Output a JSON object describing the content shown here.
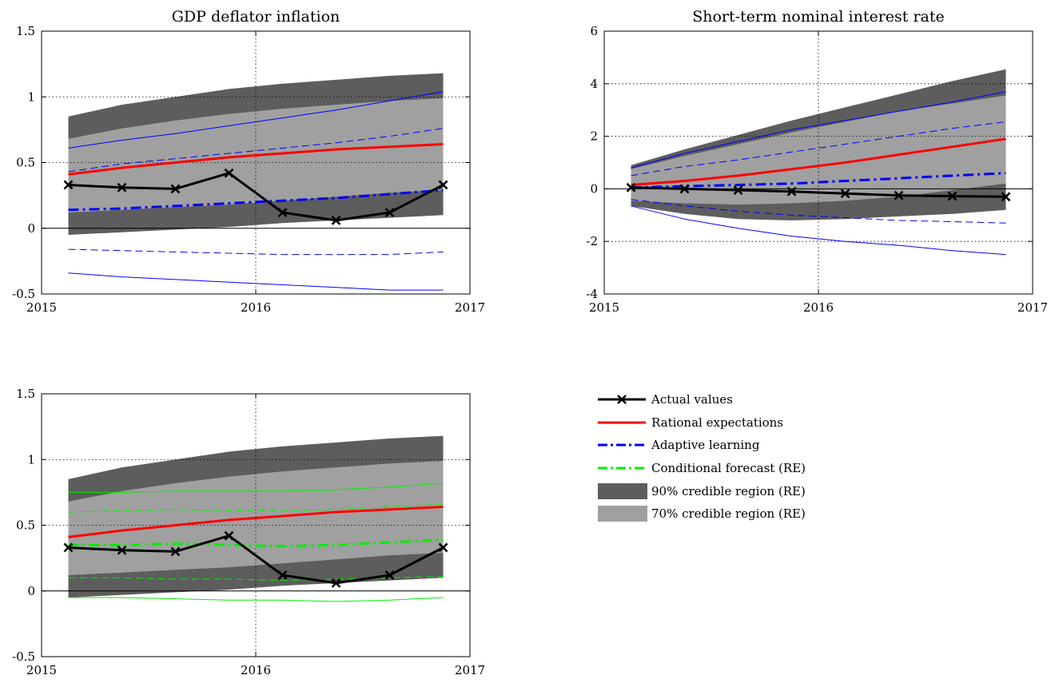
{
  "colors": {
    "actual": "#000000",
    "rational": "#ff0000",
    "adaptive": "#0000ff",
    "conditional": "#00ee00",
    "band90": "#5d5d5d",
    "band70": "#a0a0a0"
  },
  "legend": {
    "items": [
      {
        "label": "Actual values",
        "series": "actual"
      },
      {
        "label": "Rational expectations",
        "series": "rational"
      },
      {
        "label": "Adaptive learning",
        "series": "adaptive"
      },
      {
        "label": "Conditional forecast (RE)",
        "series": "conditional"
      },
      {
        "label": "90% credible region (RE)",
        "series": "band90"
      },
      {
        "label": "70% credible region (RE)",
        "series": "band70"
      }
    ]
  },
  "chart_data": [
    {
      "type": "line",
      "title": "GDP deflator inflation",
      "x": [
        2015.125,
        2015.375,
        2015.625,
        2015.875,
        2016.125,
        2016.375,
        2016.625,
        2016.875
      ],
      "xlim": [
        2015,
        2017
      ],
      "xticks": [
        2015,
        2016,
        2017
      ],
      "ylim": [
        -0.5,
        1.5
      ],
      "yticks": [
        -0.5,
        0,
        0.5,
        1,
        1.5
      ],
      "ytick_labels": [
        "-0.5",
        "0",
        "0.5",
        "1",
        "1.5"
      ],
      "grid": "dotted",
      "bands": {
        "band90": {
          "lower": [
            -0.05,
            -0.03,
            -0.01,
            0.01,
            0.04,
            0.06,
            0.08,
            0.1
          ],
          "upper": [
            0.85,
            0.94,
            1.0,
            1.06,
            1.1,
            1.13,
            1.16,
            1.18
          ]
        },
        "band70": {
          "lower": [
            0.12,
            0.14,
            0.16,
            0.18,
            0.21,
            0.24,
            0.27,
            0.29
          ],
          "upper": [
            0.68,
            0.76,
            0.82,
            0.87,
            0.91,
            0.94,
            0.97,
            0.99
          ]
        }
      },
      "series": [
        {
          "name": "Actual values",
          "key": "actual",
          "values": [
            0.33,
            0.31,
            0.3,
            0.42,
            0.12,
            0.06,
            0.12,
            0.33
          ]
        },
        {
          "name": "Rational expectations",
          "key": "rational",
          "values": [
            0.41,
            0.46,
            0.5,
            0.54,
            0.57,
            0.6,
            0.62,
            0.64
          ]
        },
        {
          "name": "Adaptive learning",
          "key": "adaptive",
          "values": [
            0.14,
            0.15,
            0.17,
            0.19,
            0.21,
            0.23,
            0.26,
            0.29
          ]
        },
        {
          "key": "adaptive",
          "style": "dashed",
          "values": [
            0.43,
            0.49,
            0.53,
            0.57,
            0.61,
            0.65,
            0.7,
            0.76
          ]
        },
        {
          "key": "adaptive",
          "style": "thin",
          "values": [
            0.61,
            0.67,
            0.72,
            0.78,
            0.84,
            0.9,
            0.97,
            1.04
          ]
        },
        {
          "key": "adaptive",
          "style": "dashed",
          "values": [
            -0.16,
            -0.17,
            -0.18,
            -0.19,
            -0.2,
            -0.2,
            -0.2,
            -0.18
          ]
        },
        {
          "key": "adaptive",
          "style": "thin",
          "values": [
            -0.34,
            -0.37,
            -0.39,
            -0.41,
            -0.43,
            -0.45,
            -0.47,
            -0.47
          ]
        }
      ]
    },
    {
      "type": "line",
      "title": "Short-term nominal interest rate",
      "x": [
        2015.125,
        2015.375,
        2015.625,
        2015.875,
        2016.125,
        2016.375,
        2016.625,
        2016.875
      ],
      "xlim": [
        2015,
        2017
      ],
      "xticks": [
        2015,
        2016,
        2017
      ],
      "ylim": [
        -4,
        6
      ],
      "yticks": [
        -4,
        -2,
        0,
        2,
        4,
        6
      ],
      "ytick_labels": [
        "-4",
        "-2",
        "0",
        "2",
        "4",
        "6"
      ],
      "grid": "dotted",
      "bands": {
        "band90": {
          "lower": [
            -0.65,
            -0.95,
            -1.15,
            -1.2,
            -1.15,
            -1.05,
            -0.95,
            -0.8
          ],
          "upper": [
            0.9,
            1.5,
            2.05,
            2.6,
            3.1,
            3.6,
            4.1,
            4.55
          ]
        },
        "band70": {
          "lower": [
            -0.45,
            -0.55,
            -0.6,
            -0.55,
            -0.45,
            -0.3,
            -0.05,
            0.2
          ],
          "upper": [
            0.75,
            1.25,
            1.7,
            2.15,
            2.55,
            2.95,
            3.25,
            3.55
          ]
        }
      },
      "series": [
        {
          "name": "Actual values",
          "key": "actual",
          "values": [
            0.05,
            0.0,
            -0.05,
            -0.1,
            -0.18,
            -0.25,
            -0.28,
            -0.3
          ]
        },
        {
          "name": "Rational expectations",
          "key": "rational",
          "values": [
            0.15,
            0.3,
            0.5,
            0.75,
            1.0,
            1.3,
            1.6,
            1.9
          ]
        },
        {
          "name": "Adaptive learning",
          "key": "adaptive",
          "values": [
            0.05,
            0.1,
            0.15,
            0.2,
            0.3,
            0.4,
            0.5,
            0.6
          ]
        },
        {
          "key": "adaptive",
          "style": "dashed",
          "values": [
            0.5,
            0.85,
            1.1,
            1.4,
            1.7,
            2.0,
            2.3,
            2.55
          ]
        },
        {
          "key": "adaptive",
          "style": "thin",
          "values": [
            0.8,
            1.35,
            1.8,
            2.25,
            2.6,
            2.95,
            3.3,
            3.7
          ]
        },
        {
          "key": "adaptive",
          "style": "dashed",
          "values": [
            -0.4,
            -0.65,
            -0.85,
            -1.0,
            -1.1,
            -1.2,
            -1.25,
            -1.3
          ]
        },
        {
          "key": "adaptive",
          "style": "thin",
          "values": [
            -0.65,
            -1.15,
            -1.5,
            -1.8,
            -2.0,
            -2.15,
            -2.35,
            -2.5
          ]
        }
      ]
    },
    {
      "type": "line",
      "title": "",
      "x": [
        2015.125,
        2015.375,
        2015.625,
        2015.875,
        2016.125,
        2016.375,
        2016.625,
        2016.875
      ],
      "xlim": [
        2015,
        2017
      ],
      "xticks": [
        2015,
        2016,
        2017
      ],
      "ylim": [
        -0.5,
        1.5
      ],
      "yticks": [
        -0.5,
        0,
        0.5,
        1,
        1.5
      ],
      "ytick_labels": [
        "-0.5",
        "0",
        "0.5",
        "1",
        "1.5"
      ],
      "grid": "dotted",
      "bands": {
        "band90": {
          "lower": [
            -0.05,
            -0.03,
            -0.01,
            0.01,
            0.04,
            0.06,
            0.08,
            0.1
          ],
          "upper": [
            0.85,
            0.94,
            1.0,
            1.06,
            1.1,
            1.13,
            1.16,
            1.18
          ]
        },
        "band70": {
          "lower": [
            0.12,
            0.14,
            0.16,
            0.18,
            0.21,
            0.24,
            0.27,
            0.29
          ],
          "upper": [
            0.68,
            0.76,
            0.82,
            0.87,
            0.91,
            0.94,
            0.97,
            0.99
          ]
        }
      },
      "series": [
        {
          "name": "Actual values",
          "key": "actual",
          "values": [
            0.33,
            0.31,
            0.3,
            0.42,
            0.12,
            0.06,
            0.12,
            0.33
          ]
        },
        {
          "name": "Rational expectations",
          "key": "rational",
          "values": [
            0.41,
            0.46,
            0.5,
            0.54,
            0.57,
            0.6,
            0.62,
            0.64
          ]
        },
        {
          "name": "Conditional forecast (RE)",
          "key": "conditional",
          "values": [
            0.35,
            0.35,
            0.36,
            0.35,
            0.34,
            0.35,
            0.37,
            0.39
          ]
        },
        {
          "key": "conditional",
          "style": "dashed",
          "values": [
            0.6,
            0.61,
            0.62,
            0.61,
            0.61,
            0.62,
            0.64,
            0.66
          ]
        },
        {
          "key": "conditional",
          "style": "thin",
          "values": [
            0.75,
            0.75,
            0.76,
            0.76,
            0.76,
            0.77,
            0.79,
            0.82
          ]
        },
        {
          "key": "conditional",
          "style": "dashed",
          "values": [
            0.1,
            0.1,
            0.09,
            0.09,
            0.08,
            0.09,
            0.1,
            0.11
          ]
        },
        {
          "key": "conditional",
          "style": "thin",
          "values": [
            -0.05,
            -0.05,
            -0.06,
            -0.07,
            -0.07,
            -0.08,
            -0.07,
            -0.05
          ]
        }
      ]
    }
  ]
}
